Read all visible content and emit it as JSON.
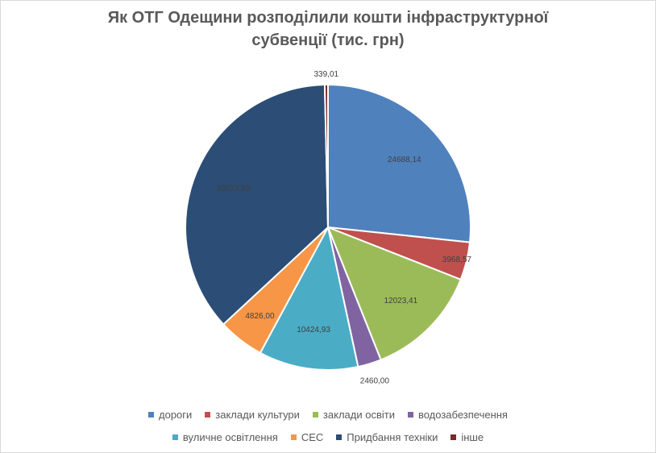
{
  "chart_data": {
    "type": "pie",
    "title_lines": [
      "Як ОТГ Одещини розподілили кошти інфраструктурної",
      "субвенції (тис. грн)"
    ],
    "categories": [
      "дороги",
      "заклади культури",
      "заклади освіти",
      "водозабезпечення",
      "вуличне освітлення",
      "СЕС",
      "Придбання техніки",
      "інше"
    ],
    "values": [
      24688.14,
      3968.57,
      12023.41,
      2460.0,
      10424.93,
      4826.0,
      33813.83,
      339.01
    ],
    "data_labels": [
      "24688,14",
      "3968,57",
      "12023,41",
      "2460,00",
      "10424,93",
      "4826,00",
      "33813,83",
      "339,01"
    ],
    "colors": [
      "#4F81BD",
      "#C0504D",
      "#9BBB59",
      "#8064A2",
      "#4BACC6",
      "#F79646",
      "#2C4D75",
      "#772C2A"
    ],
    "legend_position": "bottom",
    "legend_rows": [
      [
        0,
        1,
        2,
        3
      ],
      [
        4,
        5,
        6,
        7
      ]
    ]
  }
}
